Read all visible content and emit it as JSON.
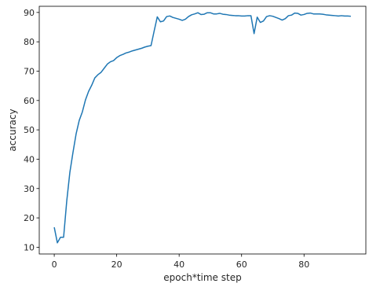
{
  "chart_data": {
    "type": "line",
    "title": "",
    "xlabel": "epoch*time step",
    "ylabel": "accuracy",
    "xlim": [
      -4.8,
      99.8
    ],
    "ylim": [
      7.7,
      92.1
    ],
    "xticks": [
      0,
      20,
      40,
      60,
      80
    ],
    "yticks": [
      10,
      20,
      30,
      40,
      50,
      60,
      70,
      80,
      90
    ],
    "grid": false,
    "legend": "none",
    "series": [
      {
        "color": "#1f77b4",
        "x": [
          0,
          1,
          2,
          3,
          4,
          5,
          6,
          7,
          8,
          9,
          10,
          11,
          12,
          13,
          14,
          15,
          16,
          17,
          18,
          19,
          20,
          21,
          22,
          23,
          24,
          25,
          26,
          27,
          28,
          29,
          30,
          31,
          32,
          33,
          34,
          35,
          36,
          37,
          38,
          39,
          40,
          41,
          42,
          43,
          44,
          45,
          46,
          47,
          48,
          49,
          50,
          51,
          52,
          53,
          54,
          55,
          56,
          57,
          58,
          59,
          60,
          61,
          62,
          63,
          64,
          65,
          66,
          67,
          68,
          69,
          70,
          71,
          72,
          73,
          74,
          75,
          76,
          77,
          78,
          79,
          80,
          81,
          82,
          83,
          84,
          85,
          86,
          87,
          88,
          89,
          90,
          91,
          92,
          93,
          94,
          95
        ],
        "values": [
          16.8,
          11.5,
          13.4,
          13.4,
          25.7,
          35.5,
          42.3,
          48.6,
          53.2,
          56.1,
          60.2,
          63.1,
          65.2,
          67.7,
          68.8,
          69.6,
          71.0,
          72.4,
          73.2,
          73.6,
          74.6,
          75.3,
          75.7,
          76.2,
          76.5,
          76.9,
          77.2,
          77.5,
          77.8,
          78.2,
          78.5,
          78.7,
          83.7,
          88.5,
          86.8,
          87.1,
          88.6,
          88.8,
          88.3,
          88.0,
          87.7,
          87.3,
          87.7,
          88.6,
          89.2,
          89.5,
          89.9,
          89.3,
          89.4,
          89.9,
          89.9,
          89.5,
          89.5,
          89.7,
          89.4,
          89.3,
          89.1,
          89.0,
          88.9,
          88.9,
          88.8,
          88.8,
          88.9,
          88.9,
          82.8,
          88.4,
          86.6,
          87.1,
          88.6,
          88.9,
          88.7,
          88.3,
          87.9,
          87.4,
          87.9,
          88.9,
          89.1,
          89.8,
          89.7,
          89.1,
          89.3,
          89.7,
          89.8,
          89.5,
          89.5,
          89.5,
          89.4,
          89.2,
          89.1,
          89.0,
          88.9,
          88.8,
          88.9,
          88.8,
          88.8,
          88.7
        ]
      }
    ]
  }
}
